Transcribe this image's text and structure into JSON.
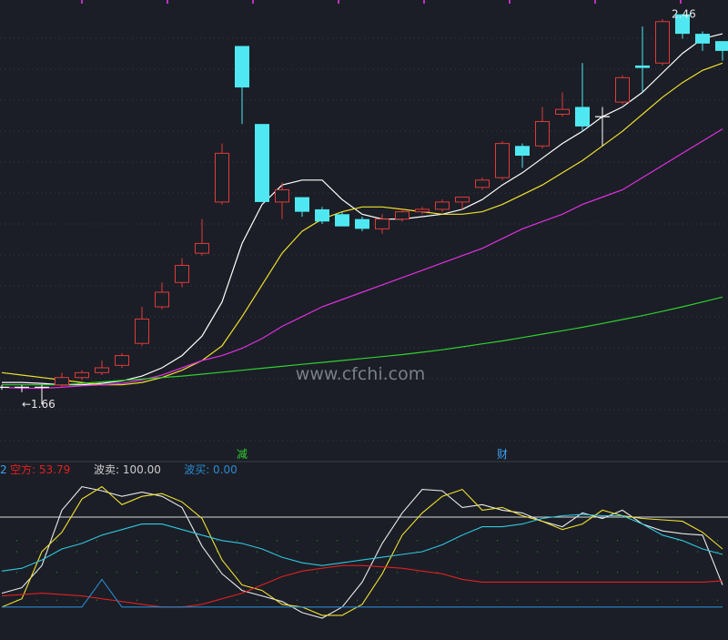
{
  "colors": {
    "background": "#1b1e26",
    "up": "#e03a3a",
    "down": "#4fe8f2",
    "ma5": "#ffffff",
    "ma10": "#f0e030",
    "ma20": "#e030e0",
    "ma60": "#30d030",
    "grid": "#4a5060",
    "indicator_red": "#e02020",
    "indicator_cyan": "#30c8e0",
    "indicator_blue": "#2a8ad0",
    "indicator_white": "#e8e8e8",
    "indicator_yellow": "#f0e030"
  },
  "watermark": "www.cfchi.com",
  "events": [
    {
      "index": 12,
      "text": "减",
      "color": "#30d030"
    },
    {
      "index": 25,
      "text": "财",
      "color": "#3aa0f0"
    }
  ],
  "indicator_header": {
    "prefix": "2",
    "items": [
      {
        "label": "空方: ",
        "value": "53.79",
        "color": "#e02020"
      },
      {
        "label": "波卖: ",
        "value": "100.00",
        "color": "#cccccc"
      },
      {
        "label": "波买: ",
        "value": "0.00",
        "color": "#2a8ad0"
      }
    ]
  },
  "chart_data": [
    {
      "type": "candlestick",
      "y_range": [
        1.58,
        2.48
      ],
      "annotations": [
        {
          "text": "←1.66",
          "index": 1,
          "value": 1.66
        },
        {
          "text": "2.46",
          "index": 33,
          "value": 2.46
        }
      ],
      "ohlc": [
        {
          "o": 1.695,
          "h": 1.7,
          "l": 1.69,
          "c": 1.695
        },
        {
          "o": 1.695,
          "h": 1.7,
          "l": 1.685,
          "c": 1.695
        },
        {
          "o": 1.695,
          "h": 1.7,
          "l": 1.66,
          "c": 1.695
        },
        {
          "o": 1.7,
          "h": 1.725,
          "l": 1.695,
          "c": 1.715
        },
        {
          "o": 1.715,
          "h": 1.73,
          "l": 1.71,
          "c": 1.725
        },
        {
          "o": 1.725,
          "h": 1.75,
          "l": 1.72,
          "c": 1.735
        },
        {
          "o": 1.74,
          "h": 1.765,
          "l": 1.735,
          "c": 1.76
        },
        {
          "o": 1.785,
          "h": 1.86,
          "l": 1.78,
          "c": 1.835
        },
        {
          "o": 1.86,
          "h": 1.91,
          "l": 1.855,
          "c": 1.89
        },
        {
          "o": 1.91,
          "h": 1.96,
          "l": 1.9,
          "c": 1.945
        },
        {
          "o": 1.97,
          "h": 2.04,
          "l": 1.965,
          "c": 1.99
        },
        {
          "o": 2.075,
          "h": 2.195,
          "l": 2.07,
          "c": 2.175
        },
        {
          "o": 2.395,
          "h": 2.395,
          "l": 2.235,
          "c": 2.31
        },
        {
          "o": 2.235,
          "h": 2.235,
          "l": 2.075,
          "c": 2.075
        },
        {
          "o": 2.075,
          "h": 2.115,
          "l": 2.04,
          "c": 2.1
        },
        {
          "o": 2.085,
          "h": 2.085,
          "l": 2.045,
          "c": 2.055
        },
        {
          "o": 2.06,
          "h": 2.065,
          "l": 2.03,
          "c": 2.035
        },
        {
          "o": 2.05,
          "h": 2.055,
          "l": 2.025,
          "c": 2.025
        },
        {
          "o": 2.04,
          "h": 2.045,
          "l": 2.015,
          "c": 2.02
        },
        {
          "o": 2.02,
          "h": 2.05,
          "l": 2.01,
          "c": 2.04
        },
        {
          "o": 2.04,
          "h": 2.06,
          "l": 2.035,
          "c": 2.055
        },
        {
          "o": 2.055,
          "h": 2.065,
          "l": 2.05,
          "c": 2.06
        },
        {
          "o": 2.06,
          "h": 2.08,
          "l": 2.055,
          "c": 2.075
        },
        {
          "o": 2.075,
          "h": 2.085,
          "l": 2.06,
          "c": 2.085
        },
        {
          "o": 2.105,
          "h": 2.125,
          "l": 2.1,
          "c": 2.12
        },
        {
          "o": 2.125,
          "h": 2.2,
          "l": 2.12,
          "c": 2.195
        },
        {
          "o": 2.19,
          "h": 2.195,
          "l": 2.145,
          "c": 2.17
        },
        {
          "o": 2.19,
          "h": 2.27,
          "l": 2.185,
          "c": 2.24
        },
        {
          "o": 2.255,
          "h": 2.3,
          "l": 2.25,
          "c": 2.265
        },
        {
          "o": 2.27,
          "h": 2.36,
          "l": 2.22,
          "c": 2.23
        },
        {
          "o": 2.25,
          "h": 2.27,
          "l": 2.19,
          "c": 2.25
        },
        {
          "o": 2.28,
          "h": 2.335,
          "l": 2.275,
          "c": 2.33
        },
        {
          "o": 2.355,
          "h": 2.435,
          "l": 2.3,
          "c": 2.35
        },
        {
          "o": 2.36,
          "h": 2.45,
          "l": 2.355,
          "c": 2.445
        },
        {
          "o": 2.46,
          "h": 2.46,
          "l": 2.41,
          "c": 2.42
        },
        {
          "o": 2.42,
          "h": 2.425,
          "l": 2.385,
          "c": 2.4
        },
        {
          "o": 2.405,
          "h": 2.405,
          "l": 2.365,
          "c": 2.385
        }
      ],
      "ma": [
        {
          "name": "MA5",
          "color": "#ffffff",
          "values": [
            1.705,
            1.705,
            1.703,
            1.7,
            1.7,
            1.703,
            1.708,
            1.718,
            1.735,
            1.76,
            1.8,
            1.87,
            1.99,
            2.07,
            2.11,
            2.12,
            2.12,
            2.08,
            2.05,
            2.04,
            2.04,
            2.045,
            2.05,
            2.06,
            2.08,
            2.11,
            2.135,
            2.165,
            2.195,
            2.22,
            2.25,
            2.27,
            2.3,
            2.34,
            2.38,
            2.41,
            2.42
          ]
        },
        {
          "name": "MA10",
          "color": "#f0e030",
          "values": [
            1.725,
            1.72,
            1.715,
            1.71,
            1.705,
            1.7,
            1.7,
            1.705,
            1.715,
            1.73,
            1.75,
            1.78,
            1.84,
            1.905,
            1.97,
            2.015,
            2.04,
            2.055,
            2.065,
            2.065,
            2.06,
            2.055,
            2.05,
            2.05,
            2.055,
            2.07,
            2.09,
            2.11,
            2.135,
            2.16,
            2.19,
            2.22,
            2.255,
            2.29,
            2.32,
            2.345,
            2.36
          ]
        },
        {
          "name": "MA20",
          "color": "#e030e0",
          "values": [
            1.695,
            1.693,
            1.693,
            1.695,
            1.698,
            1.7,
            1.703,
            1.71,
            1.72,
            1.735,
            1.75,
            1.76,
            1.775,
            1.795,
            1.82,
            1.84,
            1.86,
            1.875,
            1.89,
            1.905,
            1.92,
            1.935,
            1.95,
            1.965,
            1.98,
            2.0,
            2.02,
            2.035,
            2.05,
            2.07,
            2.085,
            2.1,
            2.125,
            2.15,
            2.175,
            2.2,
            2.225
          ]
        },
        {
          "name": "MA60",
          "color": "#30d030",
          "values": [
            1.7,
            1.7,
            1.7,
            1.7,
            1.703,
            1.706,
            1.709,
            1.712,
            1.715,
            1.718,
            1.722,
            1.726,
            1.73,
            1.734,
            1.738,
            1.742,
            1.746,
            1.75,
            1.754,
            1.758,
            1.762,
            1.767,
            1.772,
            1.778,
            1.784,
            1.79,
            1.797,
            1.804,
            1.811,
            1.818,
            1.826,
            1.834,
            1.842,
            1.851,
            1.86,
            1.87,
            1.88
          ]
        }
      ]
    },
    {
      "type": "line",
      "y_range": [
        0,
        100
      ],
      "reference_lines": [
        {
          "value": 75,
          "color": "#d8d8d8"
        }
      ],
      "series": [
        {
          "color": "#e8e8e8",
          "values": [
            20,
            24,
            40,
            80,
            97,
            94,
            90,
            93,
            90,
            82,
            54,
            34,
            22,
            18,
            14,
            6,
            2,
            10,
            28,
            56,
            78,
            95,
            94,
            82,
            84,
            80,
            78,
            72,
            68,
            78,
            74,
            80,
            70,
            65,
            63,
            62,
            26
          ]
        },
        {
          "color": "#f0e030",
          "values": [
            10,
            16,
            50,
            64,
            88,
            97,
            84,
            90,
            92,
            86,
            74,
            44,
            26,
            22,
            12,
            10,
            4,
            4,
            12,
            34,
            62,
            78,
            90,
            95,
            80,
            82,
            76,
            72,
            66,
            70,
            80,
            76,
            74,
            73,
            72,
            64,
            52
          ]
        },
        {
          "color": "#30c8e0",
          "values": [
            36,
            38,
            44,
            52,
            56,
            62,
            66,
            70,
            70,
            66,
            62,
            58,
            56,
            52,
            46,
            42,
            40,
            42,
            44,
            46,
            48,
            50,
            55,
            62,
            68,
            68,
            70,
            74,
            76,
            77,
            76,
            76,
            70,
            62,
            58,
            52,
            48
          ]
        },
        {
          "color": "#e02020",
          "values": [
            18,
            19,
            20,
            19,
            18,
            16,
            14,
            12,
            10,
            10,
            12,
            16,
            20,
            26,
            32,
            36,
            38,
            40,
            40,
            39,
            38,
            36,
            34,
            30,
            28,
            28,
            28,
            28,
            28,
            28,
            28,
            28,
            28,
            28,
            28,
            28,
            29
          ]
        },
        {
          "color": "#2a8ad0",
          "values": [
            10,
            10,
            10,
            10,
            10,
            30,
            10,
            10,
            10,
            10,
            10,
            10,
            10,
            10,
            10,
            10,
            10,
            10,
            10,
            10,
            10,
            10,
            10,
            10,
            10,
            10,
            10,
            10,
            10,
            10,
            10,
            10,
            10,
            10,
            10,
            10,
            10
          ]
        }
      ]
    }
  ]
}
